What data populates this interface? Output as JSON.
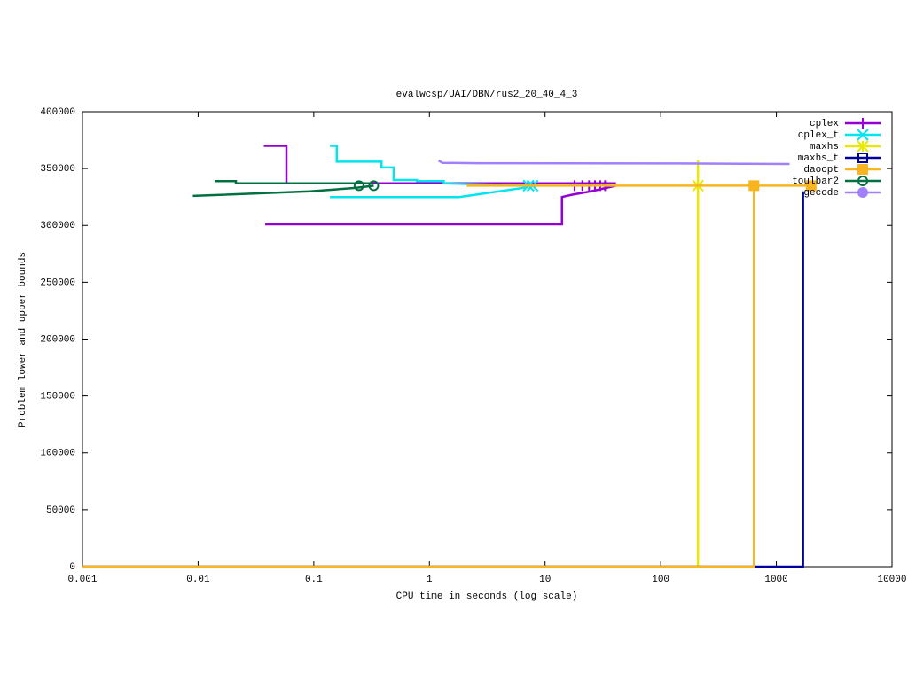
{
  "chart_data": {
    "type": "line",
    "title": "evalwcsp/UAI/DBN/rus2_20_40_4_3",
    "xlabel": "CPU time in seconds (log scale)",
    "ylabel": "Problem lower and upper bounds",
    "xscale": "log",
    "xlim": [
      0.001,
      10000
    ],
    "xticks": [
      0.001,
      0.01,
      0.1,
      1,
      10,
      100,
      1000,
      10000
    ],
    "ylim": [
      0,
      400000
    ],
    "yticks": [
      0,
      50000,
      100000,
      150000,
      200000,
      250000,
      300000,
      350000,
      400000
    ],
    "grid": false,
    "legend": "top-right",
    "series": [
      {
        "name": "cplex",
        "color": "#9400d3",
        "marker": "plus",
        "x": [
          0.037,
          0.058,
          0.058,
          41,
          null,
          0.038,
          14,
          14,
          17,
          25,
          41
        ],
        "values": [
          370000,
          370000,
          337000,
          337000,
          null,
          301000,
          301000,
          325000,
          327000,
          330000,
          335000
        ],
        "marker_x": [
          18,
          21,
          24,
          27,
          30,
          33
        ],
        "marker_values": [
          335000,
          335000,
          335000,
          335000,
          335000,
          335000
        ]
      },
      {
        "name": "cplex_t",
        "color": "#00e5ee",
        "marker": "cross",
        "x": [
          0.138,
          0.158,
          0.158,
          0.385,
          0.385,
          0.49,
          0.49,
          0.78,
          0.78,
          1.33,
          1.33,
          7.5,
          null,
          0.138,
          1.8,
          4,
          6.4,
          7.5
        ],
        "values": [
          370000,
          370000,
          356000,
          356000,
          351000,
          351000,
          340000,
          340000,
          339000,
          339000,
          337000,
          335000,
          null,
          325000,
          325000,
          330000,
          333000,
          335000
        ],
        "marker_x": [
          7.2,
          7.8
        ],
        "marker_values": [
          335000,
          335000
        ]
      },
      {
        "name": "maxhs",
        "color": "#e8e800",
        "marker": "star",
        "x": [
          0.001,
          210,
          210
        ],
        "values": [
          0,
          0,
          357000
        ],
        "marker_x": [
          210
        ],
        "marker_values": [
          335000
        ]
      },
      {
        "name": "maxhs_t",
        "color": "#0000a0",
        "marker": "open-square",
        "x": [
          0.001,
          1700,
          1700
        ],
        "values": [
          0,
          0,
          330000
        ],
        "marker_x": [],
        "marker_values": []
      },
      {
        "name": "daoopt",
        "color": "#f8b520",
        "marker": "square",
        "x": [
          0.001,
          640,
          640,
          null,
          2.1,
          2000
        ],
        "values": [
          0,
          0,
          335000,
          null,
          335000,
          335000
        ],
        "marker_x": [
          640,
          2000
        ],
        "marker_values": [
          335000,
          335000
        ]
      },
      {
        "name": "toulbar2",
        "color": "#007040",
        "marker": "open-circle",
        "x": [
          0.0139,
          0.0212,
          0.0212,
          0.32,
          null,
          0.009,
          0.093,
          0.23,
          0.33
        ],
        "values": [
          339000,
          339000,
          337000,
          337000,
          null,
          326000,
          330000,
          333000,
          335000
        ],
        "marker_x": [
          0.246,
          0.33
        ],
        "marker_values": [
          335000,
          335000
        ]
      },
      {
        "name": "gecode",
        "color": "#a080ff",
        "marker": "circle",
        "x": [
          1.2,
          1.3,
          2.5,
          100,
          1300
        ],
        "values": [
          357000,
          355000,
          354700,
          354500,
          354000
        ],
        "marker_x": [],
        "marker_values": []
      }
    ]
  }
}
